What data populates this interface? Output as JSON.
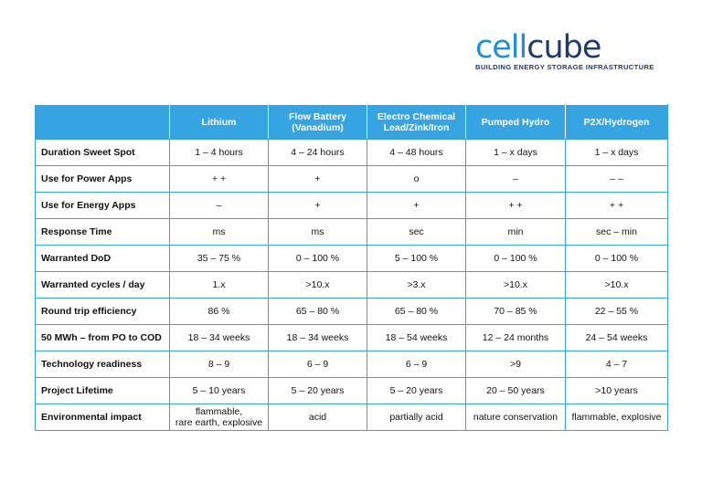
{
  "logo": {
    "word_part1": "cell",
    "word_part2": "cube",
    "tagline": "BUILDING ENERGY STORAGE INFRASTRUCTURE",
    "colors": {
      "cell": "#1d8fd6",
      "cube": "#1e3a6e"
    }
  },
  "table": {
    "header_color": "#36a4e0",
    "columns": [
      "Lithium",
      "Flow Battery\n(Vanadium)",
      "Electro Chemical\nLead/Zink/Iron",
      "Pumped Hydro",
      "P2X/Hydrogen"
    ],
    "rows": [
      {
        "label": "Duration Sweet Spot",
        "cells": [
          "1 – 4 hours",
          "4 – 24 hours",
          "4 – 48 hours",
          "1 – x days",
          "1 – x days"
        ]
      },
      {
        "label": "Use for Power Apps",
        "cells": [
          "+ +",
          "+",
          "o",
          "–",
          "– –"
        ]
      },
      {
        "label": "Use for Energy Apps",
        "cells": [
          "–",
          "+",
          "+",
          "+ +",
          "+ +"
        ]
      },
      {
        "label": "Response Time",
        "cells": [
          "ms",
          "ms",
          "sec",
          "min",
          "sec – min"
        ]
      },
      {
        "label": "Warranted DoD",
        "cells": [
          "35 – 75 %",
          "0 – 100 %",
          "5 – 100 %",
          "0 – 100 %",
          "0 – 100 %"
        ]
      },
      {
        "label": "Warranted cycles / day",
        "cells": [
          "1.x",
          ">10.x",
          ">3.x",
          ">10.x",
          ">10.x"
        ]
      },
      {
        "label": "Round trip efficiency",
        "cells": [
          "86 %",
          "65 – 80 %",
          "65 – 80 %",
          "70 – 85 %",
          "22 – 55 %"
        ]
      },
      {
        "label": "50 MWh – from PO to COD",
        "cells": [
          "18 – 34 weeks",
          "18 – 34 weeks",
          "18 – 54 weeks",
          "12 – 24 months",
          "24 – 54 weeks"
        ]
      },
      {
        "label": "Technology readiness",
        "cells": [
          "8 – 9",
          "6 – 9",
          "6 – 9",
          ">9",
          "4 – 7"
        ]
      },
      {
        "label": "Project Lifetime",
        "cells": [
          "5 – 10 years",
          "5 – 20 years",
          "5 – 20 years",
          "20 – 50 years",
          ">10 years"
        ]
      },
      {
        "label": "Environmental impact",
        "cells": [
          "flammable,\nrare earth, explosive",
          "acid",
          "partially acid",
          "nature conservation",
          "flammable, explosive"
        ]
      }
    ]
  }
}
